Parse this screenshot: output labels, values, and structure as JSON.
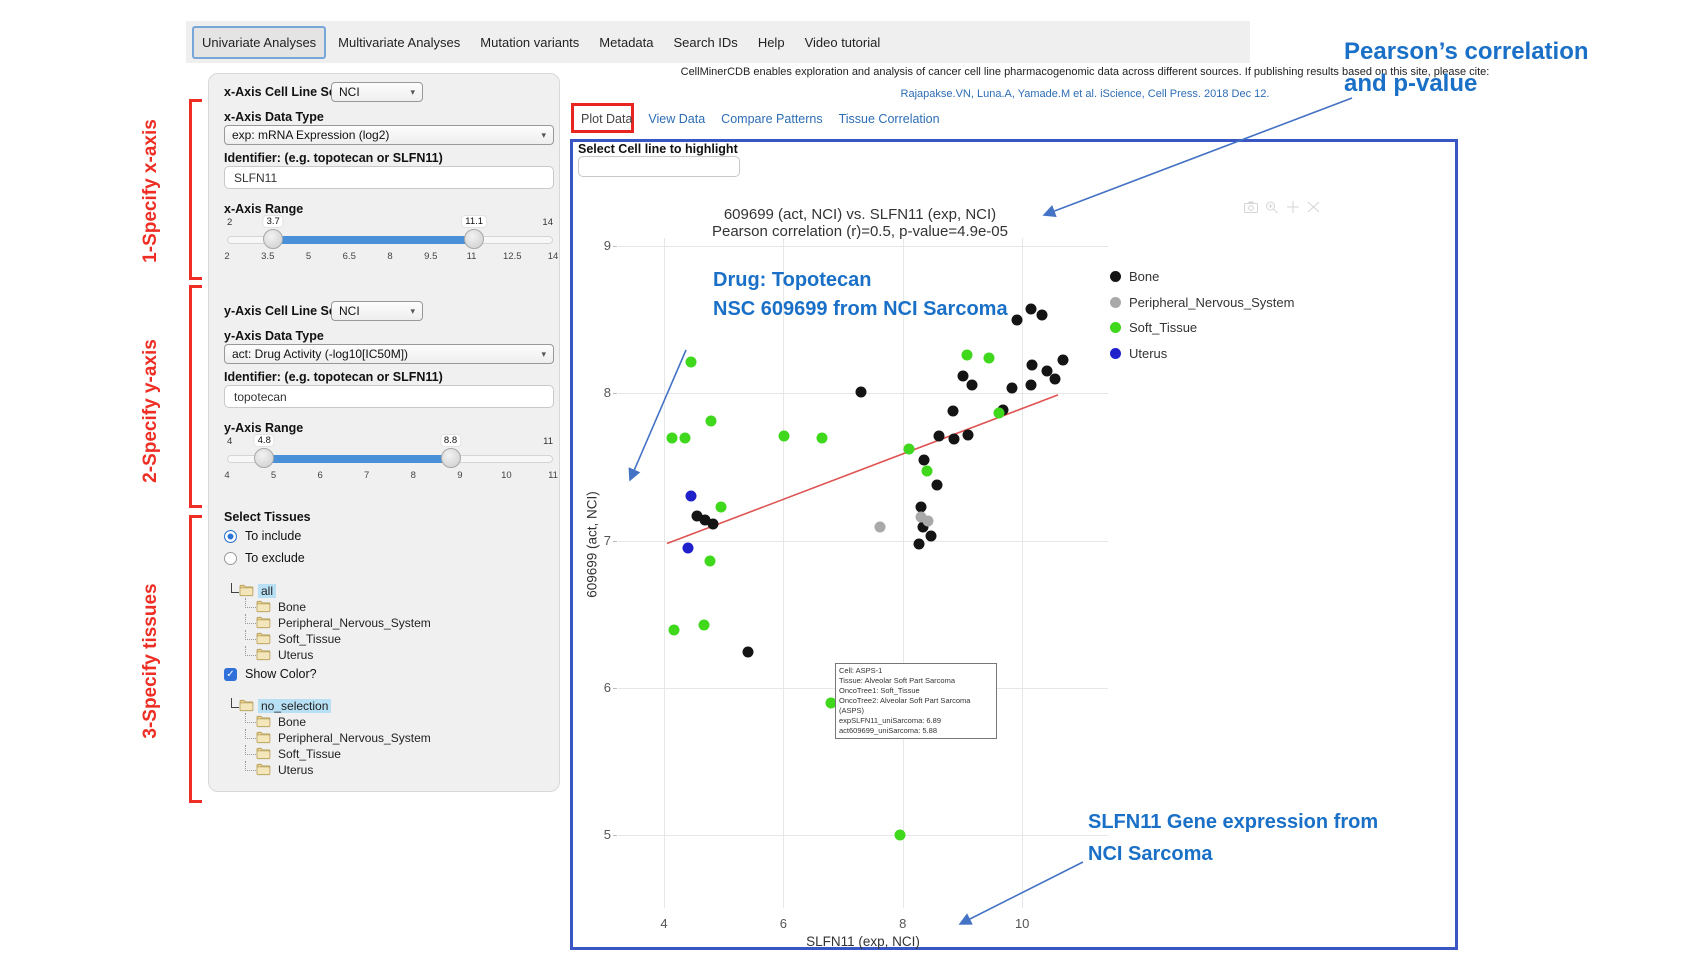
{
  "nav": {
    "tabs": [
      {
        "label": "Univariate Analyses",
        "active": true
      },
      {
        "label": "Multivariate Analyses",
        "active": false
      },
      {
        "label": "Mutation variants",
        "active": false
      },
      {
        "label": "Metadata",
        "active": false
      },
      {
        "label": "Search IDs",
        "active": false
      },
      {
        "label": "Help",
        "active": false
      },
      {
        "label": "Video tutorial",
        "active": false
      }
    ]
  },
  "annotations": {
    "step1": "1-Specify x-axis",
    "step2": "2-Specify y-axis",
    "step3": "3-Specify tissues",
    "pearson": [
      "Pearson’s correlation",
      "and p-value"
    ],
    "drug": [
      "Drug: Topotecan",
      "NSC 609699 from NCI Sarcoma"
    ],
    "slfn11": [
      "SLFN11 Gene expression from",
      "NCI Sarcoma"
    ],
    "accent_blue": "#1a70c7",
    "accent_red": "#ee2e24"
  },
  "sidebar": {
    "x_axis": {
      "cell_line_set_label": "x-Axis Cell Line Set",
      "cell_line_set_value": "NCI",
      "data_type_label": "x-Axis Data Type",
      "data_type_value": "exp: mRNA Expression (log2)",
      "identifier_label": "Identifier: (e.g. topotecan or SLFN11)",
      "identifier_value": "SLFN11",
      "range_label": "x-Axis Range",
      "range": {
        "min": 2,
        "max": 14,
        "low": 3.7,
        "high": 11.1,
        "min_label": "2",
        "max_label": "14",
        "low_label": "3.7",
        "high_label": "11.1",
        "ticks": [
          "2",
          "3.5",
          "5",
          "6.5",
          "8",
          "9.5",
          "11",
          "12.5",
          "14"
        ]
      }
    },
    "y_axis": {
      "cell_line_set_label": "y-Axis Cell Line Set",
      "cell_line_set_value": "NCI",
      "data_type_label": "y-Axis Data Type",
      "data_type_value": "act: Drug Activity (-log10[IC50M])",
      "identifier_label": "Identifier: (e.g. topotecan or SLFN11)",
      "identifier_value": "topotecan",
      "range_label": "y-Axis Range",
      "range": {
        "min": 4,
        "max": 11,
        "low": 4.8,
        "high": 8.8,
        "min_label": "4",
        "max_label": "11",
        "low_label": "4.8",
        "high_label": "8.8",
        "ticks": [
          "4",
          "5",
          "6",
          "7",
          "8",
          "9",
          "10",
          "11"
        ]
      }
    },
    "tissues": {
      "title": "Select Tissues",
      "include_label": "To include",
      "exclude_label": "To exclude",
      "include_selected": true,
      "show_color_label": "Show Color?",
      "show_color_checked": true,
      "tree_all": {
        "root": "all",
        "children": [
          "Bone",
          "Peripheral_Nervous_System",
          "Soft_Tissue",
          "Uterus"
        ]
      },
      "tree_color": {
        "root": "no_selection",
        "children": [
          "Bone",
          "Peripheral_Nervous_System",
          "Soft_Tissue",
          "Uterus"
        ]
      }
    }
  },
  "main": {
    "cite_text": "CellMinerCDB enables exploration and analysis of cancer cell line pharmacogenomic data across different sources. If publishing results based on this site, please cite:",
    "cite_link": "Rajapakse.VN, Luna.A, Yamade.M et al. iScience, Cell Press. 2018 Dec 12.",
    "tabs": [
      {
        "label": "Plot Data",
        "active": true
      },
      {
        "label": "View Data",
        "active": false
      },
      {
        "label": "Compare Patterns",
        "active": false
      },
      {
        "label": "Tissue Correlation",
        "active": false
      }
    ],
    "highlight_label": "Select Cell line to highlight",
    "highlight_value": ""
  },
  "toolbar_icons": [
    "camera-icon",
    "zoom-in-icon",
    "pan-icon",
    "autoscale-icon"
  ],
  "chart_data": {
    "type": "scatter",
    "title": "609699 (act, NCI) vs. SLFN11 (exp, NCI)",
    "subtitle": "Pearson correlation (r)=0.5, p-value=4.9e-05",
    "xlabel": "SLFN11 (exp, NCI)",
    "ylabel": "609699 (act, NCI)",
    "x_ticks": [
      4,
      6,
      8,
      10
    ],
    "y_ticks": [
      9,
      8,
      7,
      6,
      5
    ],
    "xlim": [
      3.2,
      11.4
    ],
    "ylim": [
      4.5,
      9.05
    ],
    "grid": true,
    "legend_position": "right",
    "series": [
      {
        "name": "Bone",
        "color": "#141414",
        "points": [
          [
            7.3,
            8.01
          ],
          [
            10.14,
            8.57
          ],
          [
            10.34,
            8.53
          ],
          [
            9.92,
            8.5
          ],
          [
            10.68,
            8.23
          ],
          [
            10.16,
            8.19
          ],
          [
            10.41,
            8.15
          ],
          [
            10.55,
            8.1
          ],
          [
            10.14,
            8.06
          ],
          [
            9.83,
            8.04
          ],
          [
            9.16,
            8.06
          ],
          [
            9.0,
            8.12
          ],
          [
            9.68,
            7.89
          ],
          [
            8.84,
            7.88
          ],
          [
            9.09,
            7.72
          ],
          [
            8.85,
            7.69
          ],
          [
            8.61,
            7.71
          ],
          [
            8.36,
            7.55
          ],
          [
            8.57,
            7.38
          ],
          [
            8.3,
            7.23
          ],
          [
            8.34,
            7.09
          ],
          [
            8.47,
            7.03
          ],
          [
            8.27,
            6.98
          ],
          [
            4.55,
            7.17
          ],
          [
            4.69,
            7.14
          ],
          [
            4.82,
            7.11
          ],
          [
            5.41,
            6.24
          ]
        ]
      },
      {
        "name": "Peripheral_Nervous_System",
        "color": "#a9a9a9",
        "points": [
          [
            7.62,
            7.09
          ],
          [
            8.3,
            7.16
          ],
          [
            8.42,
            7.13
          ]
        ]
      },
      {
        "name": "Soft_Tissue",
        "color": "#3fd81c",
        "points": [
          [
            4.45,
            8.21
          ],
          [
            4.79,
            7.81
          ],
          [
            4.35,
            7.7
          ],
          [
            4.13,
            7.7
          ],
          [
            6.01,
            7.71
          ],
          [
            6.64,
            7.7
          ],
          [
            8.1,
            7.62
          ],
          [
            8.4,
            7.47
          ],
          [
            9.07,
            8.26
          ],
          [
            9.44,
            8.24
          ],
          [
            9.61,
            7.87
          ],
          [
            4.95,
            7.23
          ],
          [
            4.77,
            6.86
          ],
          [
            4.67,
            6.43
          ],
          [
            4.17,
            6.39
          ],
          [
            6.8,
            5.9
          ],
          [
            7.95,
            5.0
          ]
        ]
      },
      {
        "name": "Uterus",
        "color": "#2121cc",
        "points": [
          [
            4.45,
            7.3
          ],
          [
            4.4,
            6.95
          ]
        ]
      }
    ],
    "regression_line": {
      "x1": 4.05,
      "y1": 6.98,
      "x2": 10.6,
      "y2": 7.99,
      "color": "#df5353"
    },
    "tooltip": {
      "lines": [
        "Cell: ASPS-1",
        "Tissue: Alveolar Soft Part Sarcoma",
        "OncoTree1: Soft_Tissue",
        "OncoTree2: Alveolar Soft Part Sarcoma (ASPS)",
        "expSLFN11_uniSarcoma: 6.89",
        "act609699_uniSarcoma: 5.88"
      ]
    }
  }
}
